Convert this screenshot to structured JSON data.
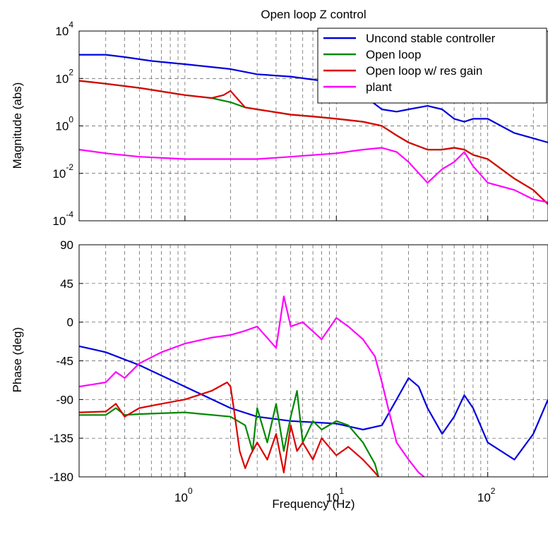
{
  "chart_data": [
    {
      "type": "line",
      "title": "Open loop Z control",
      "xlabel": "",
      "ylabel": "Magnitude (abs)",
      "xscale": "log",
      "yscale": "log",
      "xlim": [
        0.2,
        250
      ],
      "ylim": [
        0.0001,
        10000
      ],
      "grid": true,
      "legend_position": "top-right",
      "yticks": [
        {
          "base": "10",
          "exp": "-4",
          "value": 0.0001
        },
        {
          "base": "10",
          "exp": "-2",
          "value": 0.01
        },
        {
          "base": "10",
          "exp": "0",
          "value": 1
        },
        {
          "base": "10",
          "exp": "2",
          "value": 100
        },
        {
          "base": "10",
          "exp": "4",
          "value": 10000
        }
      ],
      "series": [
        {
          "name": "Uncond stable controller",
          "color": "#0000dd",
          "x": [
            0.2,
            0.3,
            0.4,
            0.6,
            1,
            2,
            3,
            5,
            8,
            10,
            15,
            20,
            25,
            30,
            40,
            50,
            60,
            70,
            80,
            100,
            150,
            200,
            250
          ],
          "y": [
            1000,
            1000,
            800,
            550,
            400,
            250,
            150,
            120,
            80,
            50,
            20,
            5,
            4,
            5,
            7,
            5,
            2,
            1.5,
            2,
            2,
            0.5,
            0.3,
            0.2
          ]
        },
        {
          "name": "Open loop",
          "color": "#008800",
          "x": [
            0.2,
            0.3,
            0.5,
            1,
            1.5,
            2,
            2.5,
            3,
            5,
            7,
            10,
            15,
            20,
            25,
            30,
            40,
            50,
            60,
            70,
            80,
            100,
            150,
            200,
            250
          ],
          "y": [
            80,
            60,
            40,
            20,
            15,
            10,
            6,
            5,
            3,
            2.5,
            2,
            1.5,
            1,
            0.4,
            0.2,
            0.1,
            0.1,
            0.12,
            0.1,
            0.06,
            0.04,
            0.006,
            0.002,
            0.0005
          ]
        },
        {
          "name": "Open loop w/ res gain",
          "color": "#dd0000",
          "x": [
            0.2,
            0.3,
            0.5,
            1,
            1.5,
            1.8,
            2,
            2.2,
            2.5,
            3,
            5,
            7,
            10,
            15,
            20,
            25,
            30,
            40,
            50,
            60,
            70,
            80,
            100,
            150,
            200,
            250
          ],
          "y": [
            80,
            60,
            40,
            20,
            15,
            20,
            30,
            15,
            6,
            5,
            3,
            2.5,
            2,
            1.5,
            1,
            0.4,
            0.2,
            0.1,
            0.1,
            0.12,
            0.1,
            0.06,
            0.04,
            0.006,
            0.002,
            0.0005
          ]
        },
        {
          "name": "plant",
          "color": "#ff00ff",
          "x": [
            0.2,
            0.3,
            0.5,
            1,
            2,
            3,
            5,
            10,
            15,
            20,
            25,
            30,
            40,
            50,
            60,
            70,
            80,
            100,
            150,
            200,
            250
          ],
          "y": [
            0.1,
            0.07,
            0.05,
            0.04,
            0.04,
            0.04,
            0.05,
            0.07,
            0.1,
            0.12,
            0.08,
            0.03,
            0.004,
            0.015,
            0.03,
            0.08,
            0.02,
            0.004,
            0.002,
            0.0008,
            0.0006
          ]
        }
      ]
    },
    {
      "type": "line",
      "title": "",
      "xlabel": "Frequency (Hz)",
      "ylabel": "Phase (deg)",
      "xscale": "log",
      "xlim": [
        0.2,
        250
      ],
      "ylim": [
        -180,
        90
      ],
      "grid": true,
      "yticks": [
        90,
        45,
        0,
        -45,
        -90,
        -135,
        -180
      ],
      "xticks": [
        {
          "base": "10",
          "exp": "0",
          "value": 1
        },
        {
          "base": "10",
          "exp": "1",
          "value": 10
        },
        {
          "base": "10",
          "exp": "2",
          "value": 100
        }
      ],
      "series": [
        {
          "name": "Uncond stable controller",
          "color": "#0000dd",
          "x": [
            0.2,
            0.3,
            0.5,
            1,
            2,
            3,
            5,
            10,
            15,
            20,
            25,
            30,
            35,
            40,
            50,
            60,
            70,
            80,
            100,
            150,
            200,
            250
          ],
          "y": [
            -28,
            -35,
            -50,
            -75,
            -100,
            -110,
            -115,
            -118,
            -125,
            -120,
            -90,
            -65,
            -75,
            -100,
            -130,
            -110,
            -85,
            -100,
            -140,
            -160,
            -130,
            -90
          ]
        },
        {
          "name": "Open loop",
          "color": "#008800",
          "x": [
            0.2,
            0.3,
            0.35,
            0.4,
            0.5,
            1,
            2,
            2.5,
            2.8,
            3,
            3.5,
            4,
            4.5,
            5,
            5.5,
            6,
            7,
            8,
            10,
            12,
            15,
            18,
            19
          ],
          "y": [
            -108,
            -108,
            -100,
            -108,
            -107,
            -105,
            -110,
            -120,
            -150,
            -100,
            -140,
            -95,
            -150,
            -110,
            -80,
            -140,
            -115,
            -125,
            -115,
            -120,
            -140,
            -165,
            -180
          ]
        },
        {
          "name": "Open loop w/ res gain",
          "color": "#dd0000",
          "x": [
            0.2,
            0.3,
            0.35,
            0.4,
            0.5,
            0.7,
            1,
            1.5,
            1.9,
            2,
            2.1,
            2.3,
            2.5,
            2.7,
            3,
            3.5,
            4,
            4.5,
            5,
            5.5,
            6,
            7,
            8,
            10,
            12,
            15,
            18,
            19
          ],
          "y": [
            -105,
            -104,
            -95,
            -110,
            -100,
            -95,
            -90,
            -80,
            -70,
            -75,
            -100,
            -150,
            -170,
            -155,
            -140,
            -160,
            -130,
            -175,
            -120,
            -150,
            -140,
            -160,
            -135,
            -155,
            -145,
            -160,
            -175,
            -180
          ]
        },
        {
          "name": "plant",
          "color": "#ff00ff",
          "x": [
            0.2,
            0.3,
            0.35,
            0.4,
            0.5,
            0.7,
            1,
            1.5,
            2,
            2.5,
            3,
            4,
            4.5,
            5,
            6,
            8,
            10,
            12,
            15,
            18,
            20,
            22,
            25,
            30,
            35,
            38
          ],
          "y": [
            -75,
            -70,
            -58,
            -65,
            -48,
            -35,
            -25,
            -18,
            -15,
            -10,
            -5,
            -30,
            30,
            -5,
            0,
            -20,
            5,
            -5,
            -20,
            -40,
            -70,
            -100,
            -140,
            -160,
            -175,
            -180
          ]
        }
      ]
    }
  ]
}
